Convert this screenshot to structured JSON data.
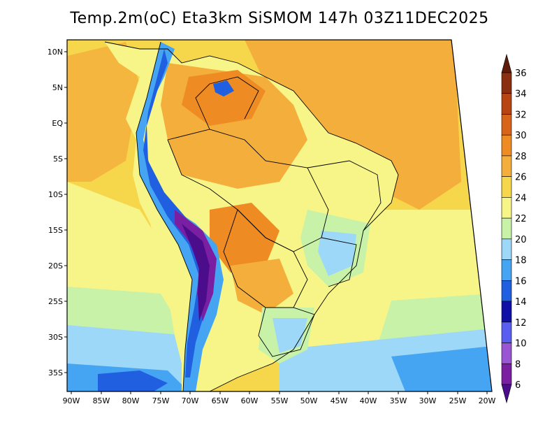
{
  "title": "Temp.2m(oC) Eta3km SiSMOM 147h 03Z11DEC2025",
  "map": {
    "lat_ticks": [
      "10N",
      "5N",
      "EQ",
      "5S",
      "10S",
      "15S",
      "20S",
      "25S",
      "30S",
      "35S"
    ],
    "lon_ticks": [
      "90W",
      "85W",
      "80W",
      "75W",
      "70W",
      "65W",
      "60W",
      "55W",
      "50W",
      "45W",
      "40W",
      "35W",
      "30W",
      "25W",
      "20W"
    ]
  },
  "colorbar": {
    "labels": [
      "6",
      "8",
      "10",
      "12",
      "14",
      "16",
      "18",
      "20",
      "22",
      "24",
      "26",
      "28",
      "30",
      "32",
      "34",
      "36"
    ],
    "colors": [
      "#4b0d8c",
      "#7b1fa2",
      "#9a55d4",
      "#5a5ef0",
      "#1010a8",
      "#2060e0",
      "#45a5f2",
      "#9ed8f8",
      "#c8f2a8",
      "#f8f588",
      "#f6d64a",
      "#f4ae3c",
      "#ee8b22",
      "#d8641a",
      "#b84412",
      "#8a3010",
      "#5e1c0a"
    ]
  }
}
